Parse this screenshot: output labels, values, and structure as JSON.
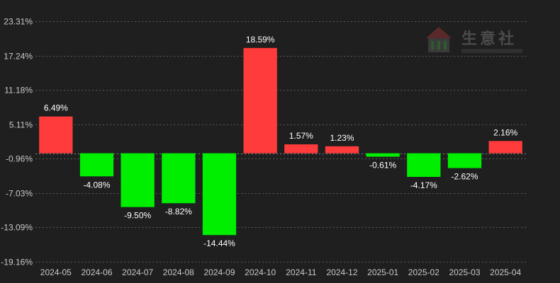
{
  "watermark": {
    "brand_text": "生意社"
  },
  "chart_data": {
    "type": "bar",
    "categories": [
      "2024-05",
      "2024-06",
      "2024-07",
      "2024-08",
      "2024-09",
      "2024-10",
      "2024-11",
      "2024-12",
      "2025-01",
      "2025-02",
      "2025-03",
      "2025-04"
    ],
    "values": [
      6.49,
      -4.08,
      -9.5,
      -8.82,
      -14.44,
      18.59,
      1.57,
      1.23,
      -0.61,
      -4.17,
      -2.62,
      2.16
    ],
    "data_labels": [
      "6.49%",
      "-4.08%",
      "-9.50%",
      "-8.82%",
      "-14.44%",
      "18.59%",
      "1.57%",
      "1.23%",
      "-0.61%",
      "-4.17%",
      "-2.62%",
      "2.16%"
    ],
    "y_ticks": [
      23.31,
      17.24,
      11.18,
      5.11,
      -0.96,
      -7.03,
      -13.09,
      -19.16
    ],
    "y_tick_labels": [
      "23.31%",
      "17.24%",
      "11.18%",
      "5.11%",
      "-0.96%",
      "-7.03%",
      "-13.09%",
      "-19.16%"
    ],
    "ylim": [
      -19.16,
      23.31
    ],
    "baseline": 0,
    "grid": true,
    "colors": {
      "positive": "#ff3b3b",
      "negative": "#00ee00",
      "background": "#1f1f1f",
      "grid": "#5a5a5a",
      "text": "#c8c8c8"
    },
    "title": "",
    "xlabel": "",
    "ylabel": ""
  }
}
